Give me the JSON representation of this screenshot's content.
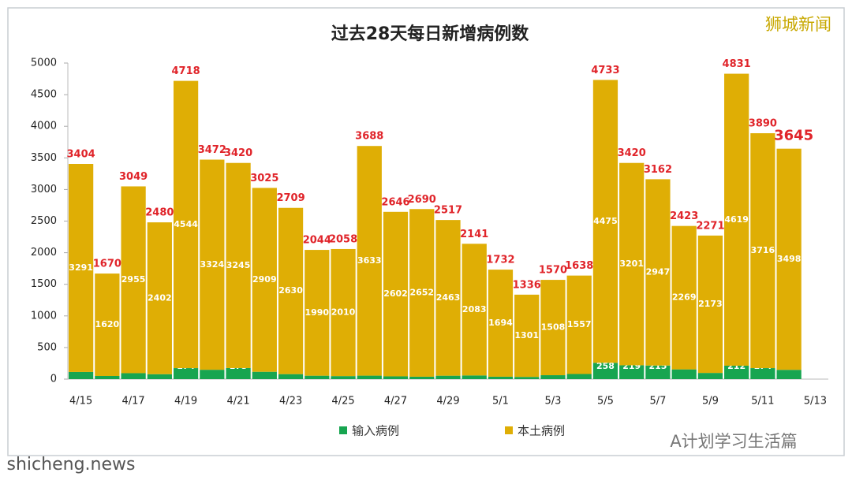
{
  "chart_data": {
    "type": "bar",
    "stacked": true,
    "title": "过去28天每日新增病例数",
    "watermarks": [
      "狮城新闻",
      "A计划学习生活篇",
      "shicheng.news"
    ],
    "categories": [
      "4/15",
      null,
      "4/17",
      null,
      "4/19",
      null,
      "4/21",
      null,
      "4/23",
      null,
      "4/25",
      null,
      "4/27",
      null,
      "4/29",
      null,
      "5/1",
      null,
      "5/3",
      null,
      "5/5",
      null,
      "5/7",
      null,
      "5/9",
      null,
      "5/11",
      null,
      "5/13"
    ],
    "series": [
      {
        "name": "输入病例",
        "color": "#17a550",
        "values": [
          113,
          50,
          94,
          78,
          174,
          148,
          175,
          116,
          79,
          54,
          48,
          55,
          44,
          38,
          54,
          58,
          38,
          35,
          62,
          81,
          258,
          219,
          215,
          154,
          98,
          212,
          174,
          147,
          null
        ]
      },
      {
        "name": "本土病例",
        "color": "#dfae05",
        "values": [
          3291,
          1620,
          2955,
          2402,
          4544,
          3324,
          3245,
          2909,
          2630,
          1990,
          2010,
          3633,
          2602,
          2652,
          2463,
          2083,
          1694,
          1301,
          1508,
          1557,
          4475,
          3201,
          2947,
          2269,
          2173,
          4619,
          3716,
          3498,
          null
        ]
      }
    ],
    "totals": [
      3404,
      1670,
      3049,
      2480,
      4718,
      3472,
      3420,
      3025,
      2709,
      2044,
      2058,
      3688,
      2646,
      2690,
      2517,
      2141,
      1732,
      1336,
      1570,
      1638,
      4733,
      3420,
      3162,
      2423,
      2271,
      4831,
      3890,
      3645,
      null
    ],
    "total_color": "#e0242a",
    "ylim": [
      0,
      5000
    ],
    "yticks": [
      0,
      500,
      1000,
      1500,
      2000,
      2500,
      3000,
      3500,
      4000,
      4500,
      5000
    ],
    "grid": false,
    "legend": "bottom"
  }
}
